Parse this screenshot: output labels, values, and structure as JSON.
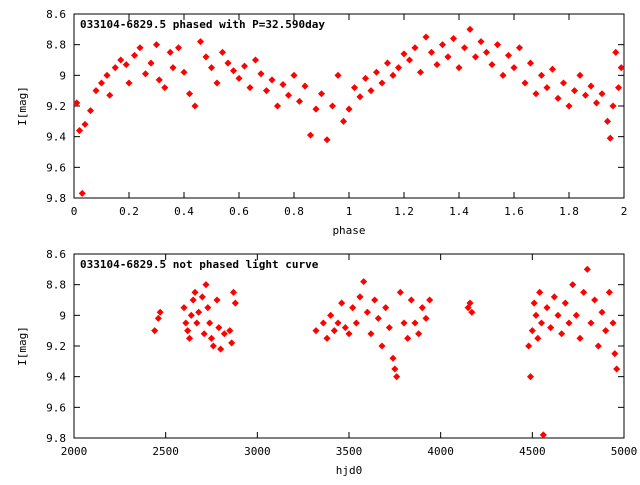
{
  "chart_data": [
    {
      "type": "scatter",
      "title": "033104-6829.5 phased with P=32.590day",
      "xlabel": "phase",
      "ylabel": "I[mag]",
      "xlim": [
        0,
        2
      ],
      "ylim": [
        9.8,
        8.6
      ],
      "y_inverted": true,
      "grid": false,
      "x_ticks": [
        0,
        0.2,
        0.4,
        0.6,
        0.8,
        1,
        1.2,
        1.4,
        1.6,
        1.8,
        2
      ],
      "x_tick_labels": [
        "0",
        "0.2",
        "0.4",
        "0.6",
        "0.8",
        "1",
        "1.2",
        "1.4",
        "1.6",
        "1.8",
        "2"
      ],
      "y_ticks": [
        8.6,
        8.8,
        9.0,
        9.2,
        9.4,
        9.6,
        9.8
      ],
      "y_tick_labels": [
        "8.6",
        "8.8",
        "9",
        "9.2",
        "9.4",
        "9.6",
        "9.8"
      ],
      "point_color": "#ff0000",
      "points": [
        [
          0.03,
          9.77
        ],
        [
          0.02,
          9.36
        ],
        [
          0.04,
          9.32
        ],
        [
          0.06,
          9.23
        ],
        [
          0.01,
          9.18
        ],
        [
          0.08,
          9.1
        ],
        [
          0.1,
          9.05
        ],
        [
          0.12,
          9.0
        ],
        [
          0.13,
          9.13
        ],
        [
          0.15,
          8.95
        ],
        [
          0.17,
          8.9
        ],
        [
          0.19,
          8.93
        ],
        [
          0.2,
          9.05
        ],
        [
          0.22,
          8.87
        ],
        [
          0.24,
          8.82
        ],
        [
          0.26,
          8.99
        ],
        [
          0.28,
          8.92
        ],
        [
          0.3,
          8.8
        ],
        [
          0.31,
          9.03
        ],
        [
          0.33,
          9.08
        ],
        [
          0.35,
          8.85
        ],
        [
          0.36,
          8.95
        ],
        [
          0.38,
          8.82
        ],
        [
          0.4,
          8.98
        ],
        [
          0.42,
          9.12
        ],
        [
          0.44,
          9.2
        ],
        [
          0.46,
          8.78
        ],
        [
          0.48,
          8.88
        ],
        [
          0.5,
          8.95
        ],
        [
          0.52,
          9.05
        ],
        [
          0.54,
          8.85
        ],
        [
          0.56,
          8.92
        ],
        [
          0.58,
          8.97
        ],
        [
          0.6,
          9.02
        ],
        [
          0.62,
          8.94
        ],
        [
          0.64,
          9.08
        ],
        [
          0.66,
          8.9
        ],
        [
          0.68,
          8.99
        ],
        [
          0.7,
          9.1
        ],
        [
          0.72,
          9.03
        ],
        [
          0.74,
          9.2
        ],
        [
          0.76,
          9.06
        ],
        [
          0.78,
          9.13
        ],
        [
          0.8,
          9.0
        ],
        [
          0.82,
          9.17
        ],
        [
          0.84,
          9.07
        ],
        [
          0.86,
          9.39
        ],
        [
          0.88,
          9.22
        ],
        [
          0.9,
          9.12
        ],
        [
          0.92,
          9.42
        ],
        [
          0.94,
          9.2
        ],
        [
          0.96,
          9.0
        ],
        [
          0.98,
          9.3
        ],
        [
          1.0,
          9.22
        ],
        [
          1.02,
          9.08
        ],
        [
          1.04,
          9.14
        ],
        [
          1.06,
          9.02
        ],
        [
          1.08,
          9.1
        ],
        [
          1.1,
          8.98
        ],
        [
          1.12,
          9.05
        ],
        [
          1.14,
          8.92
        ],
        [
          1.16,
          9.0
        ],
        [
          1.18,
          8.95
        ],
        [
          1.2,
          8.86
        ],
        [
          1.22,
          8.9
        ],
        [
          1.24,
          8.82
        ],
        [
          1.26,
          8.98
        ],
        [
          1.28,
          8.75
        ],
        [
          1.3,
          8.85
        ],
        [
          1.32,
          8.93
        ],
        [
          1.34,
          8.8
        ],
        [
          1.36,
          8.88
        ],
        [
          1.38,
          8.76
        ],
        [
          1.4,
          8.95
        ],
        [
          1.42,
          8.82
        ],
        [
          1.44,
          8.7
        ],
        [
          1.46,
          8.88
        ],
        [
          1.48,
          8.78
        ],
        [
          1.5,
          8.85
        ],
        [
          1.52,
          8.93
        ],
        [
          1.54,
          8.8
        ],
        [
          1.56,
          9.0
        ],
        [
          1.58,
          8.87
        ],
        [
          1.6,
          8.95
        ],
        [
          1.62,
          8.82
        ],
        [
          1.64,
          9.05
        ],
        [
          1.66,
          8.92
        ],
        [
          1.68,
          9.12
        ],
        [
          1.7,
          9.0
        ],
        [
          1.72,
          9.08
        ],
        [
          1.74,
          8.96
        ],
        [
          1.76,
          9.15
        ],
        [
          1.78,
          9.05
        ],
        [
          1.8,
          9.2
        ],
        [
          1.82,
          9.1
        ],
        [
          1.84,
          9.0
        ],
        [
          1.86,
          9.13
        ],
        [
          1.88,
          9.07
        ],
        [
          1.9,
          9.18
        ],
        [
          1.92,
          9.12
        ],
        [
          1.94,
          9.3
        ],
        [
          1.95,
          9.41
        ],
        [
          1.96,
          9.2
        ],
        [
          1.98,
          9.08
        ],
        [
          1.99,
          8.95
        ],
        [
          1.97,
          8.85
        ]
      ]
    },
    {
      "type": "scatter",
      "title": "033104-6829.5 not phased light curve",
      "xlabel": "hjd0",
      "ylabel": "I[mag]",
      "xlim": [
        2000,
        5000
      ],
      "ylim": [
        9.8,
        8.6
      ],
      "y_inverted": true,
      "grid": false,
      "x_ticks": [
        2000,
        2500,
        3000,
        3500,
        4000,
        4500,
        5000
      ],
      "x_tick_labels": [
        "2000",
        "2500",
        "3000",
        "3500",
        "4000",
        "4500",
        "5000"
      ],
      "y_ticks": [
        8.6,
        8.8,
        9.0,
        9.2,
        9.4,
        9.6,
        9.8
      ],
      "y_tick_labels": [
        "8.6",
        "8.8",
        "9",
        "9.2",
        "9.4",
        "9.6",
        "9.8"
      ],
      "point_color": "#ff0000",
      "points": [
        [
          2440,
          9.1
        ],
        [
          2460,
          9.02
        ],
        [
          2470,
          8.98
        ],
        [
          2600,
          8.95
        ],
        [
          2610,
          9.05
        ],
        [
          2620,
          9.1
        ],
        [
          2630,
          9.15
        ],
        [
          2640,
          9.0
        ],
        [
          2650,
          8.9
        ],
        [
          2660,
          8.85
        ],
        [
          2670,
          9.05
        ],
        [
          2680,
          8.98
        ],
        [
          2700,
          8.88
        ],
        [
          2710,
          9.12
        ],
        [
          2720,
          8.8
        ],
        [
          2730,
          8.95
        ],
        [
          2740,
          9.05
        ],
        [
          2750,
          9.15
        ],
        [
          2760,
          9.2
        ],
        [
          2780,
          8.9
        ],
        [
          2790,
          9.08
        ],
        [
          2800,
          9.22
        ],
        [
          2820,
          9.12
        ],
        [
          2850,
          9.1
        ],
        [
          2860,
          9.18
        ],
        [
          2870,
          8.85
        ],
        [
          2880,
          8.92
        ],
        [
          3320,
          9.1
        ],
        [
          3360,
          9.05
        ],
        [
          3380,
          9.15
        ],
        [
          3400,
          9.0
        ],
        [
          3420,
          9.1
        ],
        [
          3440,
          9.05
        ],
        [
          3460,
          8.92
        ],
        [
          3480,
          9.08
        ],
        [
          3500,
          9.12
        ],
        [
          3520,
          8.95
        ],
        [
          3540,
          9.05
        ],
        [
          3560,
          8.88
        ],
        [
          3580,
          8.78
        ],
        [
          3600,
          8.98
        ],
        [
          3620,
          9.12
        ],
        [
          3640,
          8.9
        ],
        [
          3660,
          9.02
        ],
        [
          3680,
          9.2
        ],
        [
          3700,
          8.95
        ],
        [
          3720,
          9.08
        ],
        [
          3740,
          9.28
        ],
        [
          3750,
          9.35
        ],
        [
          3760,
          9.4
        ],
        [
          3780,
          8.85
        ],
        [
          3800,
          9.05
        ],
        [
          3820,
          9.15
        ],
        [
          3840,
          8.9
        ],
        [
          3860,
          9.05
        ],
        [
          3880,
          9.12
        ],
        [
          3900,
          8.95
        ],
        [
          3920,
          9.02
        ],
        [
          3940,
          8.9
        ],
        [
          4150,
          8.95
        ],
        [
          4160,
          8.92
        ],
        [
          4170,
          8.98
        ],
        [
          4480,
          9.2
        ],
        [
          4490,
          9.4
        ],
        [
          4500,
          9.1
        ],
        [
          4510,
          8.92
        ],
        [
          4520,
          9.0
        ],
        [
          4530,
          9.15
        ],
        [
          4540,
          8.85
        ],
        [
          4550,
          9.05
        ],
        [
          4560,
          9.78
        ],
        [
          4580,
          8.95
        ],
        [
          4600,
          9.08
        ],
        [
          4620,
          8.88
        ],
        [
          4640,
          9.0
        ],
        [
          4660,
          9.12
        ],
        [
          4680,
          8.92
        ],
        [
          4700,
          9.05
        ],
        [
          4720,
          8.8
        ],
        [
          4740,
          9.0
        ],
        [
          4760,
          9.15
        ],
        [
          4780,
          8.85
        ],
        [
          4800,
          8.7
        ],
        [
          4820,
          9.05
        ],
        [
          4840,
          8.9
        ],
        [
          4860,
          9.2
        ],
        [
          4880,
          8.98
        ],
        [
          4900,
          9.1
        ],
        [
          4920,
          8.85
        ],
        [
          4940,
          9.05
        ],
        [
          4950,
          9.25
        ],
        [
          4960,
          9.35
        ]
      ]
    }
  ]
}
